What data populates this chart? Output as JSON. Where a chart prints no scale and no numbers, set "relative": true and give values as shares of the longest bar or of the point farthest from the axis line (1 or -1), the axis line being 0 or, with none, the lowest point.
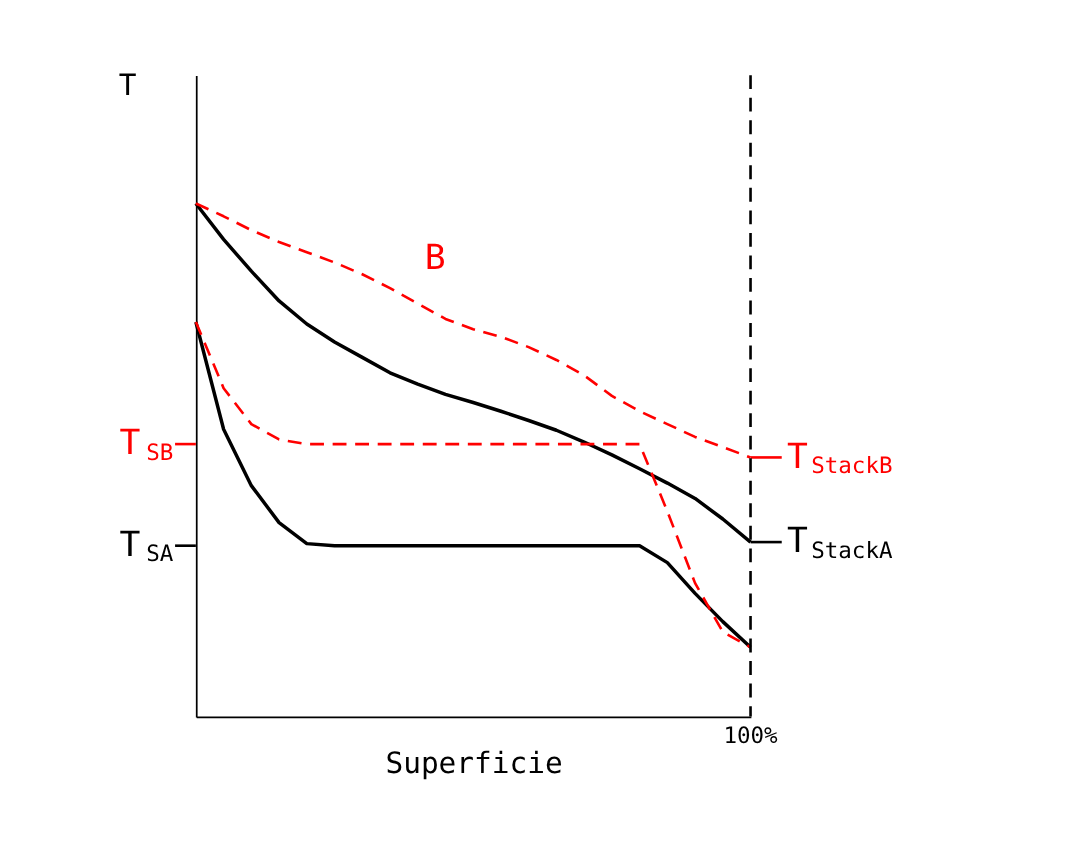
{
  "chart_data": {
    "type": "line",
    "relative": true,
    "xlabel": "Superficie",
    "ylabel": "T",
    "categories": [
      null,
      null,
      null,
      null,
      null,
      null,
      null,
      null,
      null,
      null,
      null,
      null,
      null,
      null,
      null,
      null,
      null,
      null,
      null,
      null,
      null
    ],
    "series": [
      {
        "color": "#000000",
        "line_style": "solid",
        "values": [
          1.0,
          0.93,
          0.868,
          0.81,
          0.765,
          0.73,
          0.7,
          0.67,
          0.648,
          0.628,
          0.612,
          0.595,
          0.577,
          0.558,
          0.535,
          0.51,
          0.483,
          0.455,
          0.425,
          0.385,
          0.34
        ]
      },
      {
        "color": "#000000",
        "line_style": "solid",
        "values": [
          0.769,
          0.56,
          0.45,
          0.378,
          0.337,
          0.333,
          0.333,
          0.333,
          0.333,
          0.333,
          0.333,
          0.333,
          0.333,
          0.333,
          0.333,
          0.333,
          0.333,
          0.3,
          0.24,
          0.185,
          0.135
        ]
      },
      {
        "name": "B",
        "color": "#ff0000",
        "line_style": "dashed",
        "values": [
          1.0,
          0.975,
          0.948,
          0.925,
          0.905,
          0.885,
          0.862,
          0.835,
          0.805,
          0.775,
          0.755,
          0.74,
          0.72,
          0.695,
          0.665,
          0.625,
          0.595,
          0.57,
          0.545,
          0.525,
          0.505
        ]
      },
      {
        "color": "#ff0000",
        "line_style": "dashed",
        "values": [
          0.769,
          0.64,
          0.57,
          0.54,
          0.531,
          0.531,
          0.531,
          0.531,
          0.531,
          0.531,
          0.531,
          0.531,
          0.531,
          0.531,
          0.531,
          0.531,
          0.531,
          0.4,
          0.26,
          0.165,
          0.135
        ]
      }
    ],
    "ref_lines": [
      {
        "axis": "y",
        "value": 0.531,
        "label": "T$_{SB}$",
        "color": "#ff0000"
      },
      {
        "axis": "y",
        "value": 0.333,
        "label": "T$_{SA}$",
        "color": "#000000"
      },
      {
        "axis": "y",
        "value": 0.505,
        "label": "T$_{StackB}$",
        "color": "#ff0000"
      },
      {
        "axis": "y",
        "value": 0.34,
        "label": "T$_{StackA}$",
        "color": "#000000"
      },
      {
        "axis": "x",
        "value": "100%",
        "color": "#000000",
        "line_style": "dashed"
      }
    ]
  }
}
